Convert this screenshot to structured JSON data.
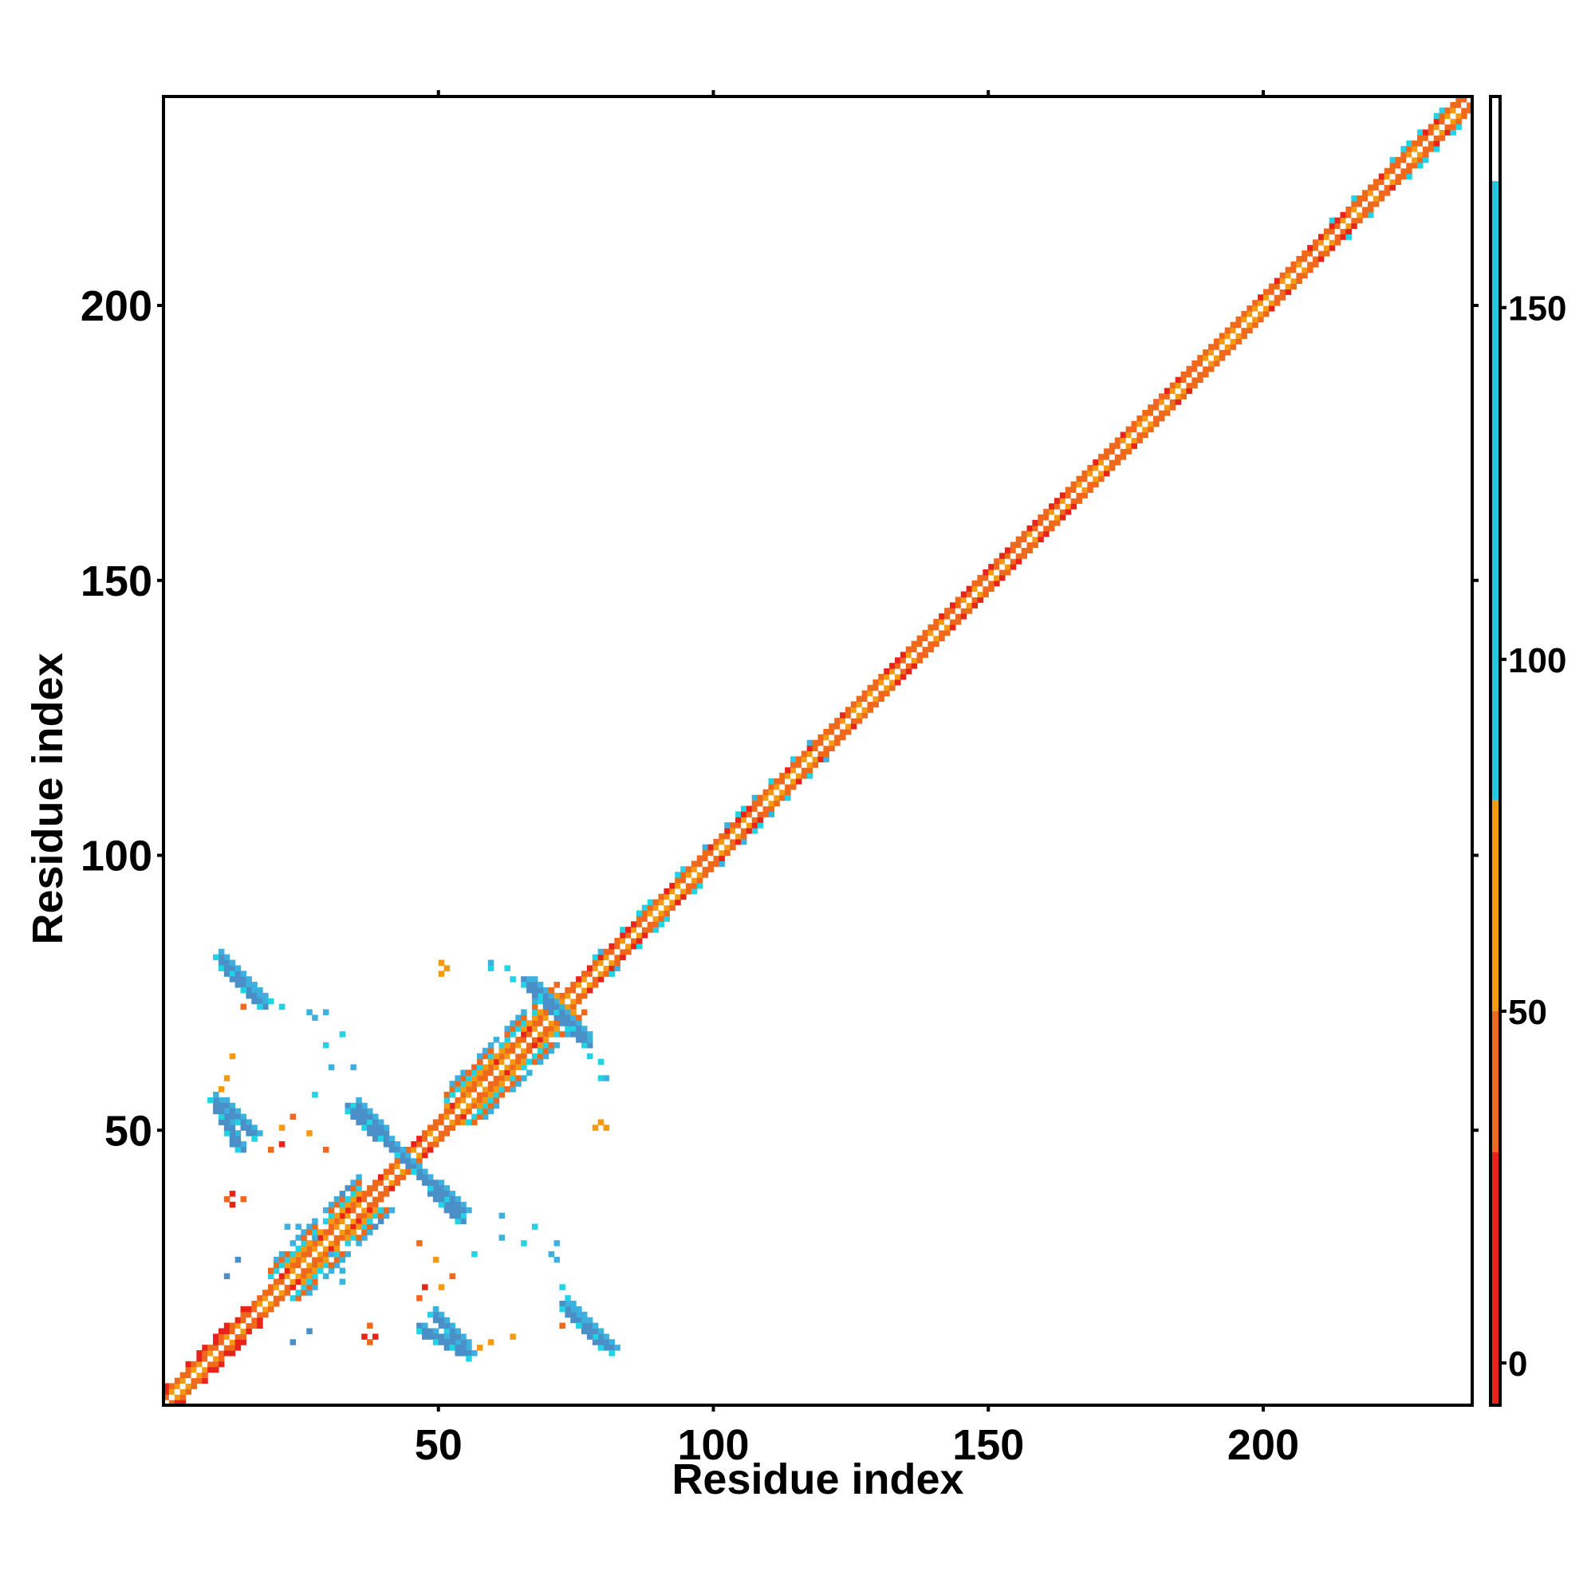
{
  "chart_data": {
    "type": "heatmap",
    "title": "",
    "xlabel": "Residue index",
    "ylabel": "Residue index",
    "xlim": [
      0,
      238
    ],
    "ylim": [
      0,
      238
    ],
    "x_ticks": [
      50,
      100,
      150,
      200
    ],
    "y_ticks": [
      50,
      100,
      150,
      200
    ],
    "grid": false,
    "legend": "colorbar-right",
    "colorbar": {
      "range": [
        -6,
        180
      ],
      "ticks": [
        0,
        50,
        100,
        150
      ],
      "bands": [
        {
          "from": -6,
          "to": 30,
          "color": "#e8241a"
        },
        {
          "from": 30,
          "to": 50,
          "color": "#f0681c"
        },
        {
          "from": 50,
          "to": 80,
          "color": "#f39a12"
        },
        {
          "from": 80,
          "to": 168,
          "color": "#27c3e0"
        },
        {
          "from": 168,
          "to": 180,
          "color": "#ffffff"
        }
      ]
    },
    "colors": {
      "red": "#e8241a",
      "orange_red": "#f0681c",
      "orange": "#f39a12",
      "cyan": "#22d3e6",
      "sky": "#3db0de",
      "steel": "#4a8fc7"
    },
    "features": [
      {
        "kind": "diagonal",
        "from": 1,
        "to": 238
      },
      {
        "kind": "parallel",
        "from": 1,
        "to": 82
      },
      {
        "kind": "antiparallel",
        "x": [
          11,
          19
        ],
        "y": [
          81,
          74
        ]
      },
      {
        "kind": "antiparallel",
        "x": [
          11,
          17
        ],
        "y": [
          56,
          50
        ]
      },
      {
        "kind": "antiparallel",
        "x": [
          34,
          55
        ],
        "y": [
          55,
          36
        ]
      },
      {
        "kind": "antiparallel",
        "x": [
          47,
          56
        ],
        "y": [
          15,
          10
        ]
      },
      {
        "kind": "antiparallel",
        "x": [
          73,
          82
        ],
        "y": [
          19,
          11
        ]
      },
      {
        "kind": "antiparallel",
        "x": [
          66,
          77
        ],
        "y": [
          78,
          68
        ]
      }
    ]
  }
}
